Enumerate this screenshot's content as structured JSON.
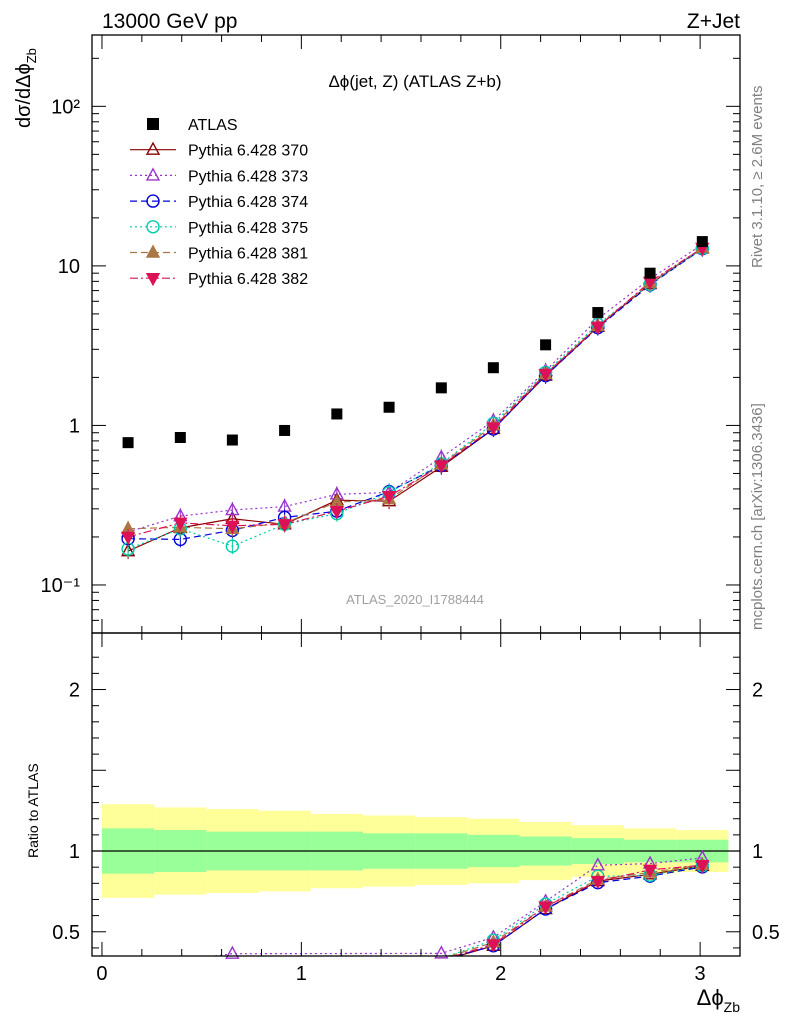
{
  "header": {
    "left": "13000 GeV pp",
    "right": "Z+Jet"
  },
  "side_labels": {
    "rivet": "Rivet 3.1.10, ≥ 2.6M events",
    "mcplots": "mcplots.cern.ch [arXiv:1306.3436]"
  },
  "colors": {
    "band_inner": "#99ff99",
    "band_outer": "#ffff99"
  },
  "chart_data": {
    "type": "scatter",
    "title": "Δϕ(jet, Z) (ATLAS Z+b)",
    "analysis_id": "ATLAS_2020_I1788444",
    "xlabel": "Δϕ_Zb",
    "ylabel": "dσ/dΔϕ_Zb",
    "ratio_ylabel": "Ratio to ATLAS",
    "xlim": [
      -0.05,
      3.2
    ],
    "ylim": [
      0.05,
      280
    ],
    "yscale": "log",
    "ratio_ylim": [
      0.35,
      2.35
    ],
    "x_ticks": [
      "0",
      "1",
      "2",
      "3"
    ],
    "y_ticks": [
      "10⁻¹",
      "1",
      "10",
      "10²"
    ],
    "ratio_ticks": [
      "0.5",
      "1",
      "2"
    ],
    "legend_position": "top-left",
    "x": [
      0.131,
      0.393,
      0.654,
      0.916,
      1.178,
      1.44,
      1.702,
      1.963,
      2.225,
      2.487,
      2.749,
      3.011
    ],
    "data": {
      "name": "ATLAS",
      "values": [
        0.78,
        0.84,
        0.81,
        0.93,
        1.18,
        1.3,
        1.72,
        2.3,
        3.2,
        5.1,
        9.0,
        14.2
      ],
      "band_inner": [
        0.14,
        0.13,
        0.12,
        0.12,
        0.12,
        0.11,
        0.11,
        0.1,
        0.09,
        0.08,
        0.07,
        0.07
      ],
      "band_outer": [
        0.29,
        0.27,
        0.26,
        0.25,
        0.23,
        0.22,
        0.21,
        0.2,
        0.18,
        0.16,
        0.14,
        0.13
      ]
    },
    "series": [
      {
        "name": "Pythia 6.428 370",
        "color": "#8b0000",
        "marker": "triangle-open",
        "dash": "solid",
        "values": [
          0.163,
          0.228,
          0.26,
          0.24,
          0.34,
          0.335,
          0.55,
          0.95,
          2.05,
          4.15,
          7.7,
          12.9
        ]
      },
      {
        "name": "Pythia 6.428 373",
        "color": "#9933cc",
        "marker": "triangle-open",
        "dash": "dotted",
        "values": [
          0.215,
          0.27,
          0.295,
          0.31,
          0.37,
          0.38,
          0.63,
          1.07,
          2.2,
          4.65,
          8.3,
          13.6
        ]
      },
      {
        "name": "Pythia 6.428 374",
        "color": "#0000dd",
        "marker": "circle-open",
        "dash": "dashed",
        "values": [
          0.195,
          0.193,
          0.22,
          0.265,
          0.29,
          0.385,
          0.56,
          0.95,
          2.05,
          4.1,
          7.6,
          12.8
        ]
      },
      {
        "name": "Pythia 6.428 375",
        "color": "#00ccaa",
        "marker": "circle-open",
        "dash": "dotted",
        "values": [
          0.168,
          0.225,
          0.175,
          0.24,
          0.28,
          0.38,
          0.575,
          1.03,
          2.15,
          4.3,
          7.65,
          12.9
        ]
      },
      {
        "name": "Pythia 6.428 381",
        "color": "#aa7744",
        "marker": "triangle-filled",
        "dash": "dashed",
        "values": [
          0.225,
          0.23,
          0.225,
          0.245,
          0.33,
          0.345,
          0.57,
          1.0,
          2.1,
          4.2,
          7.8,
          13.0
        ]
      },
      {
        "name": "Pythia 6.428 382",
        "color": "#dd1155",
        "marker": "triangle-down-filled",
        "dash": "dashdot",
        "values": [
          0.2,
          0.245,
          0.235,
          0.24,
          0.29,
          0.36,
          0.56,
          0.97,
          2.1,
          4.15,
          7.95,
          12.95
        ]
      }
    ]
  }
}
